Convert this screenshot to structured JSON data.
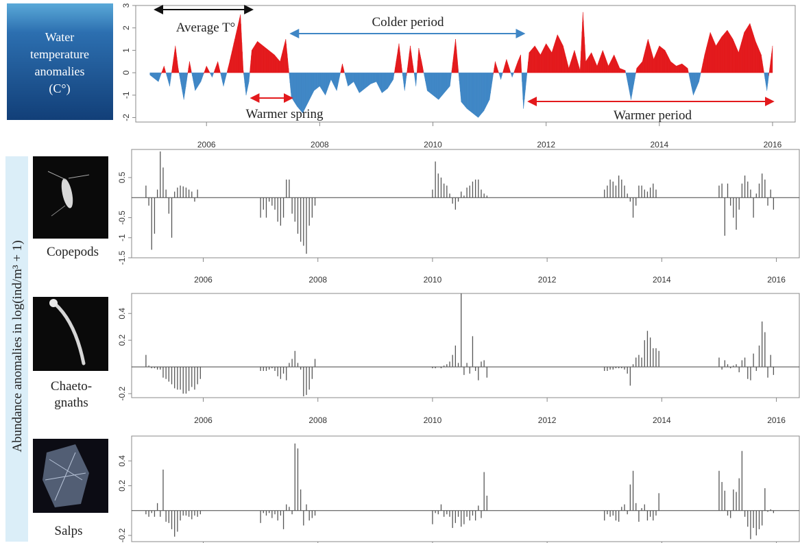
{
  "colors": {
    "warm": "#e3191c",
    "cold": "#3f86c5",
    "bar": "#555555",
    "axis": "#888888",
    "sidebar": "#dbeef8",
    "titlebox": "#1a4d86"
  },
  "icons": {
    "copepod": "copepod-photo",
    "chaetognath": "chaetognath-photo",
    "salp": "salp-photo",
    "water": "water-photo"
  },
  "chart_data": [
    {
      "type": "area",
      "title_lines": [
        "Water",
        "temperature",
        "anomalies",
        "(C°)"
      ],
      "xlabel": "",
      "ylabel": "",
      "xlim": [
        2004.75,
        2016.4
      ],
      "ylim": [
        -2.2,
        3
      ],
      "x_ticks": [
        "2006",
        "2008",
        "2010",
        "2012",
        "2014",
        "2016"
      ],
      "y_ticks": [
        "-2",
        "-1",
        "0",
        "1",
        "2",
        "3"
      ],
      "annotations": [
        {
          "text": "Average T°",
          "x_start": 2005.1,
          "x_end": 2006.8,
          "color": "#111111"
        },
        {
          "text": "Colder period",
          "x_start": 2007.5,
          "x_end": 2011.6,
          "color": "#3f86c5"
        },
        {
          "text": "Warmer spring",
          "x_start": 2006.8,
          "x_end": 2007.5,
          "color": "#e3191c"
        },
        {
          "text": "Warmer period",
          "x_start": 2011.7,
          "x_end": 2016.0,
          "color": "#e3191c"
        }
      ],
      "x": [
        2005.0,
        2005.15,
        2005.25,
        2005.35,
        2005.45,
        2005.5,
        2005.55,
        2005.6,
        2005.7,
        2005.8,
        2005.9,
        2006.0,
        2006.1,
        2006.2,
        2006.3,
        2006.4,
        2006.5,
        2006.6,
        2006.65,
        2006.7,
        2006.75,
        2006.8,
        2006.9,
        2007.0,
        2007.1,
        2007.2,
        2007.3,
        2007.4,
        2007.45,
        2007.5,
        2007.6,
        2007.7,
        2007.8,
        2007.9,
        2008.0,
        2008.1,
        2008.2,
        2008.3,
        2008.4,
        2008.5,
        2008.6,
        2008.7,
        2008.8,
        2008.9,
        2009.0,
        2009.1,
        2009.2,
        2009.3,
        2009.4,
        2009.45,
        2009.5,
        2009.6,
        2009.7,
        2009.75,
        2009.8,
        2009.9,
        2010.0,
        2010.1,
        2010.2,
        2010.3,
        2010.4,
        2010.5,
        2010.6,
        2010.7,
        2010.8,
        2010.9,
        2011.0,
        2011.1,
        2011.2,
        2011.3,
        2011.4,
        2011.5,
        2011.55,
        2011.6,
        2011.7,
        2011.8,
        2011.9,
        2012.0,
        2012.1,
        2012.2,
        2012.3,
        2012.4,
        2012.5,
        2012.6,
        2012.65,
        2012.7,
        2012.8,
        2012.9,
        2013.0,
        2013.1,
        2013.2,
        2013.3,
        2013.4,
        2013.5,
        2013.6,
        2013.7,
        2013.8,
        2013.9,
        2014.0,
        2014.1,
        2014.2,
        2014.3,
        2014.4,
        2014.5,
        2014.6,
        2014.7,
        2014.8,
        2014.9,
        2015.0,
        2015.1,
        2015.2,
        2015.3,
        2015.4,
        2015.5,
        2015.6,
        2015.7,
        2015.8,
        2015.9,
        2016.0
      ],
      "values": [
        -0.1,
        -0.4,
        0.3,
        -0.6,
        1.2,
        0.2,
        -0.5,
        -1.2,
        0.5,
        -0.8,
        -0.4,
        0.3,
        -0.2,
        0.5,
        -0.6,
        0.4,
        1.5,
        2.6,
        0.1,
        -1.0,
        -0.4,
        1.0,
        1.4,
        1.2,
        1.0,
        0.8,
        0.5,
        1.5,
        0.2,
        -1.1,
        -1.5,
        -1.8,
        -1.3,
        -0.8,
        -0.6,
        -1.0,
        -0.3,
        -0.8,
        0.4,
        -0.6,
        -0.4,
        -0.9,
        -0.7,
        -0.5,
        -0.4,
        -0.9,
        -0.7,
        -0.3,
        1.3,
        0.2,
        -0.8,
        1.2,
        -0.6,
        1.1,
        0.5,
        -0.8,
        -1.0,
        -1.2,
        -0.9,
        -0.6,
        1.5,
        -1.3,
        -1.6,
        -1.8,
        -2.0,
        -1.7,
        -1.2,
        0.5,
        -0.3,
        0.6,
        -0.2,
        0.5,
        0.8,
        -1.6,
        0.9,
        1.2,
        0.8,
        1.3,
        0.9,
        1.7,
        1.2,
        0.2,
        1.0,
        0.1,
        2.7,
        0.5,
        0.9,
        0.3,
        1.0,
        0.3,
        0.8,
        0.2,
        0.1,
        -1.2,
        0.2,
        0.5,
        1.5,
        0.6,
        1.2,
        1.0,
        0.5,
        0.3,
        0.4,
        0.2,
        -1.0,
        -0.4,
        0.8,
        1.8,
        1.2,
        1.6,
        1.9,
        1.5,
        0.9,
        1.8,
        2.2,
        1.4,
        0.8,
        -0.8,
        1.2
      ]
    },
    {
      "type": "bar",
      "label": "Copepods",
      "xlim": [
        2004.75,
        2016.4
      ],
      "ylim": [
        -1.5,
        1.2
      ],
      "x_ticks": [
        "2006",
        "2008",
        "2010",
        "2012",
        "2014",
        "2016"
      ],
      "y_ticks": [
        "-1.5",
        "-1",
        "-0.5",
        "0.5"
      ],
      "x": [
        2005.0,
        2005.05,
        2005.1,
        2005.15,
        2005.2,
        2005.25,
        2005.3,
        2005.35,
        2005.4,
        2005.45,
        2005.5,
        2005.55,
        2005.6,
        2005.65,
        2005.7,
        2005.75,
        2005.8,
        2005.85,
        2005.9,
        2005.95,
        2007.0,
        2007.05,
        2007.1,
        2007.15,
        2007.2,
        2007.25,
        2007.3,
        2007.35,
        2007.4,
        2007.45,
        2007.5,
        2007.55,
        2007.6,
        2007.65,
        2007.7,
        2007.75,
        2007.8,
        2007.85,
        2007.9,
        2007.95,
        2010.0,
        2010.05,
        2010.1,
        2010.15,
        2010.2,
        2010.25,
        2010.3,
        2010.35,
        2010.4,
        2010.45,
        2010.5,
        2010.55,
        2010.6,
        2010.65,
        2010.7,
        2010.75,
        2010.8,
        2010.85,
        2010.9,
        2010.95,
        2013.0,
        2013.05,
        2013.1,
        2013.15,
        2013.2,
        2013.25,
        2013.3,
        2013.35,
        2013.4,
        2013.45,
        2013.5,
        2013.55,
        2013.6,
        2013.65,
        2013.7,
        2013.75,
        2013.8,
        2013.85,
        2013.9,
        2013.95,
        2015.0,
        2015.05,
        2015.1,
        2015.15,
        2015.2,
        2015.25,
        2015.3,
        2015.35,
        2015.4,
        2015.45,
        2015.5,
        2015.55,
        2015.6,
        2015.65,
        2015.7,
        2015.75,
        2015.8,
        2015.85,
        2015.9,
        2015.95
      ],
      "values": [
        0.3,
        -0.2,
        -1.3,
        -0.9,
        0.2,
        1.15,
        0.75,
        0.2,
        -0.4,
        -1.0,
        0.15,
        0.25,
        0.3,
        0.28,
        0.25,
        0.2,
        0.15,
        -0.1,
        0.2,
        0.0,
        -0.5,
        -0.3,
        -0.5,
        -0.1,
        -0.2,
        -0.3,
        -0.6,
        -0.7,
        -0.5,
        0.45,
        0.45,
        -0.4,
        -0.6,
        -0.9,
        -1.1,
        -1.2,
        -1.4,
        -0.7,
        -0.5,
        -0.2,
        0.2,
        0.9,
        0.6,
        0.5,
        0.35,
        0.3,
        0.1,
        -0.15,
        -0.3,
        -0.1,
        0.15,
        0.05,
        0.25,
        0.3,
        0.4,
        0.45,
        0.45,
        0.2,
        0.1,
        0.05,
        0.2,
        0.3,
        0.45,
        0.4,
        0.3,
        0.55,
        0.45,
        0.3,
        0.1,
        -0.1,
        -0.5,
        -0.2,
        0.3,
        0.3,
        0.2,
        0.15,
        0.25,
        0.35,
        0.2,
        0.0,
        0.3,
        0.35,
        -0.95,
        0.35,
        -0.2,
        -0.5,
        -0.8,
        -0.3,
        0.35,
        0.55,
        0.4,
        0.2,
        -0.5,
        0.1,
        0.35,
        0.6,
        0.45,
        -0.2,
        0.2,
        -0.3
      ]
    },
    {
      "type": "bar",
      "label_lines": [
        "Chaeto-",
        "gnaths"
      ],
      "xlim": [
        2004.75,
        2016.4
      ],
      "ylim": [
        -0.23,
        0.55
      ],
      "x_ticks": [
        "2006",
        "2008",
        "2010",
        "2012",
        "2014",
        "2016"
      ],
      "y_ticks": [
        "-0.2",
        "0.2",
        "0.4"
      ],
      "x": [
        2005.0,
        2005.05,
        2005.1,
        2005.15,
        2005.2,
        2005.25,
        2005.3,
        2005.35,
        2005.4,
        2005.45,
        2005.5,
        2005.55,
        2005.6,
        2005.65,
        2005.7,
        2005.75,
        2005.8,
        2005.85,
        2005.9,
        2005.95,
        2007.0,
        2007.05,
        2007.1,
        2007.15,
        2007.2,
        2007.25,
        2007.3,
        2007.35,
        2007.4,
        2007.45,
        2007.5,
        2007.55,
        2007.6,
        2007.65,
        2007.7,
        2007.75,
        2007.8,
        2007.85,
        2007.9,
        2007.95,
        2010.0,
        2010.05,
        2010.1,
        2010.15,
        2010.2,
        2010.25,
        2010.3,
        2010.35,
        2010.4,
        2010.45,
        2010.5,
        2010.55,
        2010.6,
        2010.65,
        2010.7,
        2010.75,
        2010.8,
        2010.85,
        2010.9,
        2010.95,
        2013.0,
        2013.05,
        2013.1,
        2013.15,
        2013.2,
        2013.25,
        2013.3,
        2013.35,
        2013.4,
        2013.45,
        2013.5,
        2013.55,
        2013.6,
        2013.65,
        2013.7,
        2013.75,
        2013.8,
        2013.85,
        2013.9,
        2013.95,
        2015.0,
        2015.05,
        2015.1,
        2015.15,
        2015.2,
        2015.25,
        2015.3,
        2015.35,
        2015.4,
        2015.45,
        2015.5,
        2015.55,
        2015.6,
        2015.65,
        2015.7,
        2015.75,
        2015.8,
        2015.85,
        2015.9,
        2015.95
      ],
      "values": [
        0.09,
        0.01,
        -0.01,
        -0.01,
        -0.02,
        -0.02,
        -0.08,
        -0.09,
        -0.11,
        -0.13,
        -0.16,
        -0.17,
        -0.17,
        -0.2,
        -0.2,
        -0.18,
        -0.15,
        -0.17,
        -0.13,
        -0.09,
        -0.03,
        -0.03,
        -0.03,
        -0.02,
        -0.01,
        -0.03,
        -0.07,
        -0.09,
        -0.05,
        -0.1,
        0.03,
        0.06,
        0.12,
        0.03,
        -0.02,
        -0.22,
        -0.21,
        -0.17,
        -0.09,
        0.06,
        -0.01,
        -0.01,
        0.0,
        -0.01,
        0.01,
        0.02,
        0.04,
        0.09,
        0.16,
        0.03,
        0.55,
        -0.06,
        0.03,
        -0.05,
        0.23,
        -0.03,
        -0.1,
        0.04,
        0.05,
        -0.08,
        -0.03,
        -0.03,
        -0.02,
        -0.02,
        -0.01,
        -0.01,
        -0.01,
        -0.02,
        -0.05,
        -0.14,
        0.02,
        0.07,
        0.09,
        0.07,
        0.2,
        0.27,
        0.22,
        0.14,
        0.14,
        0.12,
        0.07,
        -0.02,
        0.05,
        0.02,
        -0.01,
        0.01,
        0.02,
        -0.04,
        0.05,
        0.07,
        -0.09,
        -0.1,
        0.1,
        -0.03,
        0.16,
        0.34,
        0.26,
        -0.08,
        0.09,
        -0.06
      ]
    },
    {
      "type": "bar",
      "label": "Salps",
      "xlim": [
        2004.75,
        2016.4
      ],
      "ylim": [
        -0.25,
        0.6
      ],
      "x_ticks": [
        "2006",
        "2008",
        "2010",
        "2012",
        "2014",
        "2016"
      ],
      "y_ticks": [
        "-0.2",
        "0.2",
        "0.4"
      ],
      "x": [
        2005.0,
        2005.05,
        2005.1,
        2005.15,
        2005.2,
        2005.25,
        2005.3,
        2005.35,
        2005.4,
        2005.45,
        2005.5,
        2005.55,
        2005.6,
        2005.65,
        2005.7,
        2005.75,
        2005.8,
        2005.85,
        2005.9,
        2005.95,
        2007.0,
        2007.05,
        2007.1,
        2007.15,
        2007.2,
        2007.25,
        2007.3,
        2007.35,
        2007.4,
        2007.45,
        2007.5,
        2007.55,
        2007.6,
        2007.65,
        2007.7,
        2007.75,
        2007.8,
        2007.85,
        2007.9,
        2007.95,
        2010.0,
        2010.05,
        2010.1,
        2010.15,
        2010.2,
        2010.25,
        2010.3,
        2010.35,
        2010.4,
        2010.45,
        2010.5,
        2010.55,
        2010.6,
        2010.65,
        2010.7,
        2010.75,
        2010.8,
        2010.85,
        2010.9,
        2010.95,
        2013.0,
        2013.05,
        2013.1,
        2013.15,
        2013.2,
        2013.25,
        2013.3,
        2013.35,
        2013.4,
        2013.45,
        2013.5,
        2013.55,
        2013.6,
        2013.65,
        2013.7,
        2013.75,
        2013.8,
        2013.85,
        2013.9,
        2013.95,
        2015.0,
        2015.05,
        2015.1,
        2015.15,
        2015.2,
        2015.25,
        2015.3,
        2015.35,
        2015.4,
        2015.45,
        2015.5,
        2015.55,
        2015.6,
        2015.65,
        2015.7,
        2015.75,
        2015.8,
        2015.85,
        2015.9,
        2015.95
      ],
      "values": [
        -0.03,
        -0.05,
        -0.02,
        -0.05,
        0.06,
        -0.05,
        0.33,
        -0.09,
        -0.1,
        -0.15,
        -0.21,
        -0.17,
        -0.08,
        -0.04,
        -0.04,
        -0.05,
        -0.07,
        -0.04,
        -0.05,
        -0.03,
        -0.1,
        -0.02,
        -0.04,
        -0.02,
        -0.06,
        -0.03,
        -0.08,
        -0.04,
        -0.15,
        0.05,
        0.03,
        -0.03,
        0.54,
        0.5,
        0.17,
        -0.12,
        0.05,
        -0.08,
        -0.06,
        -0.04,
        -0.11,
        -0.02,
        -0.03,
        0.05,
        -0.05,
        -0.03,
        -0.05,
        -0.14,
        -0.1,
        -0.05,
        -0.13,
        -0.11,
        -0.05,
        -0.08,
        -0.04,
        -0.08,
        0.04,
        -0.06,
        0.31,
        0.12,
        -0.08,
        -0.03,
        -0.05,
        -0.04,
        -0.08,
        -0.09,
        0.03,
        0.05,
        -0.03,
        0.21,
        0.32,
        0.06,
        -0.09,
        0.02,
        0.05,
        -0.08,
        -0.05,
        -0.08,
        -0.04,
        0.14,
        0.32,
        0.23,
        0.16,
        -0.04,
        -0.06,
        0.17,
        0.15,
        0.26,
        0.48,
        -0.05,
        -0.13,
        -0.23,
        -0.14,
        -0.2,
        -0.15,
        -0.12,
        0.18,
        -0.01,
        0.01,
        -0.02
      ]
    }
  ],
  "shared": {
    "ylabel": "Abundance anomalies in log(ind/m³ + 1)"
  }
}
